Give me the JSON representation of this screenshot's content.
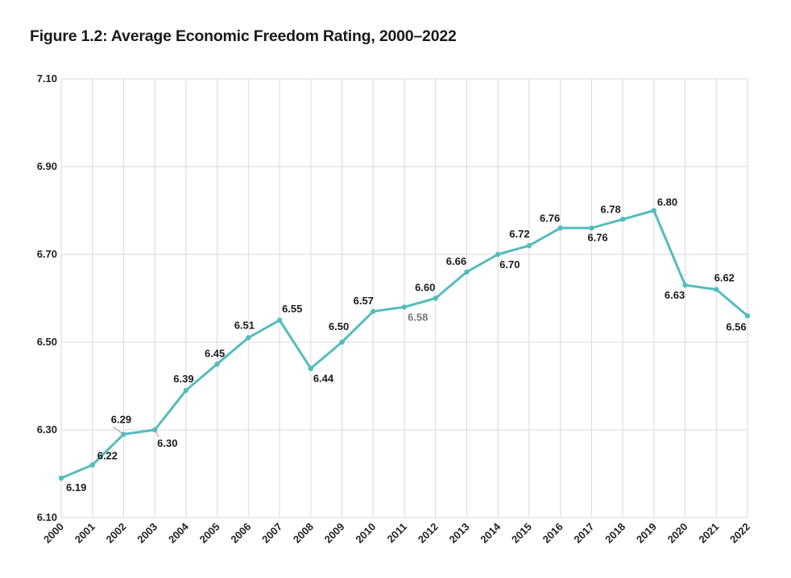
{
  "figure": {
    "title": "Figure 1.2: Average Economic Freedom Rating, 2000–2022"
  },
  "colors": {
    "line": "#55BCBC",
    "grid": "#d9d9d9"
  },
  "chart_data": {
    "type": "line",
    "title": "Figure 1.2: Average Economic Freedom Rating, 2000–2022",
    "xlabel": "",
    "ylabel": "",
    "x": [
      "2000",
      "2001",
      "2002",
      "2003",
      "2004",
      "2005",
      "2006",
      "2007",
      "2008",
      "2009",
      "2010",
      "2011",
      "2012",
      "2013",
      "2014",
      "2015",
      "2016",
      "2017",
      "2018",
      "2019",
      "2020",
      "2021",
      "2022"
    ],
    "series": [
      {
        "values": [
          6.19,
          6.22,
          6.29,
          6.3,
          6.39,
          6.45,
          6.51,
          6.55,
          6.44,
          6.5,
          6.57,
          6.58,
          6.6,
          6.66,
          6.7,
          6.72,
          6.76,
          6.76,
          6.78,
          6.8,
          6.63,
          6.62,
          6.56
        ],
        "labels": [
          "6.19",
          "6.22",
          "6.29",
          "6.30",
          "6.39",
          "6.45",
          "6.51",
          "6.55",
          "6.44",
          "6.50",
          "6.57",
          "6.58",
          "6.60",
          "6.66",
          "6.70",
          "6.72",
          "6.76",
          "6.76",
          "6.78",
          "6.80",
          "6.63",
          "6.62",
          "6.56"
        ]
      }
    ],
    "yticks": [
      "6.10",
      "6.30",
      "6.50",
      "6.70",
      "6.90",
      "7.10"
    ],
    "ylim": [
      6.1,
      7.1
    ],
    "grid": true,
    "legend": "none"
  }
}
